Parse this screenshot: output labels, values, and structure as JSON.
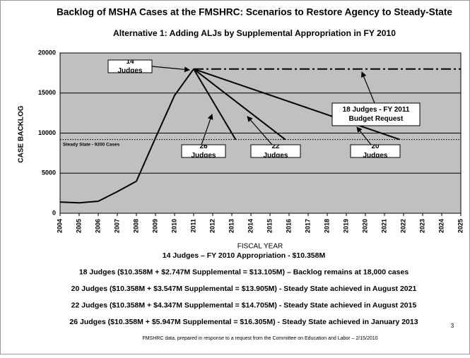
{
  "chart_data": {
    "type": "line",
    "title": "Backlog of MSHA Cases at the FMSHRC: Scenarios to Restore Agency to Steady-State",
    "subtitle": "Alternative 1: Adding ALJs by Supplemental Appropriation in FY 2010",
    "x_label": "FISCAL YEAR",
    "y_label": "CASE BACKLOG",
    "xlim": [
      2004,
      2025
    ],
    "xticks": [
      2004,
      2005,
      2006,
      2007,
      2008,
      2009,
      2010,
      2011,
      2012,
      2013,
      2014,
      2015,
      2016,
      2017,
      2018,
      2019,
      2020,
      2021,
      2022,
      2023,
      2024,
      2025
    ],
    "ylim": [
      0,
      20000
    ],
    "yticks": [
      0,
      5000,
      10000,
      15000,
      20000
    ],
    "grid": true,
    "series": [
      {
        "name": "14 Judges",
        "color": "#000000",
        "x": [
          2004,
          2005,
          2006,
          2007,
          2008,
          2009,
          2010,
          2011
        ],
        "values": [
          1400,
          1300,
          1500,
          2700,
          4000,
          9400,
          14700,
          18000
        ]
      },
      {
        "name": "18 Judges - FY 2011 Budget Request",
        "color": "#000000",
        "dash": "dashdot",
        "x": [
          2011,
          2025
        ],
        "values": [
          18000,
          18000
        ]
      },
      {
        "name": "26 Judges",
        "color": "#000000",
        "x": [
          2011,
          2013.2
        ],
        "values": [
          18000,
          9200
        ]
      },
      {
        "name": "22 Judges",
        "color": "#000000",
        "x": [
          2011,
          2015.8
        ],
        "values": [
          18000,
          9200
        ]
      },
      {
        "name": "20 Judges",
        "color": "#000000",
        "x": [
          2011,
          2021.8
        ],
        "values": [
          18000,
          9200
        ]
      }
    ],
    "reference_line": {
      "label": "Steady State - 9200 Cases",
      "value": 9200
    }
  },
  "notes": [
    "14 Judges – FY 2010 Appropriation - $10.358M",
    "18 Judges ($10.358M + $2.747M Supplemental = $13.105M) – Backlog remains at 18,000 cases",
    "20 Judges ($10.358M + $3.547M Supplemental = $13.905M) - Steady State achieved in August 2021",
    "22 Judges ($10.358M + $4.347M Supplemental = $14.705M) - Steady State achieved in August 2015",
    "26 Judges ($10.358M + $5.947M Supplemental = $16.305M) - Steady State achieved in January 2013"
  ],
  "footer": "FMSHRC data, prepared in response to a request from the Committee on Education and Labor – 2/15/2010",
  "page_number": "3"
}
